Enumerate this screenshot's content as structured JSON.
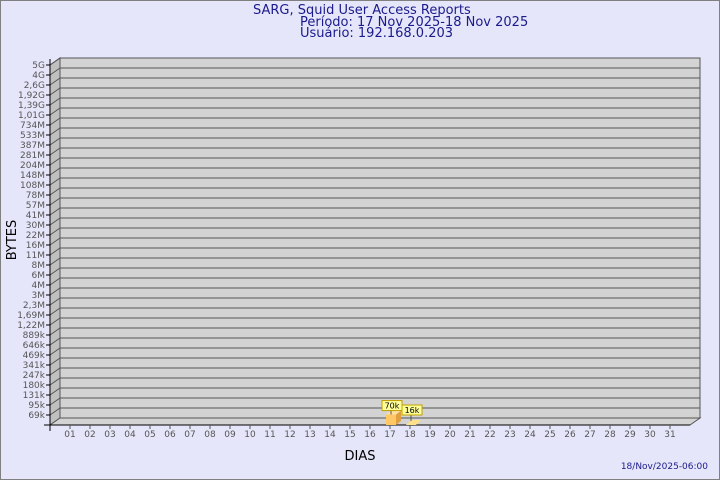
{
  "header": {
    "title": "SARG, Squid User Access Reports",
    "period": "Período: 17 Nov 2025-18 Nov 2025",
    "user": "Usuário: 192.168.0.203"
  },
  "timestamp": "18/Nov/2025-06:00",
  "colors": {
    "background": "#e6e6fa",
    "plot": "#d3d3d3",
    "bar": "#ffc864",
    "label_bg": "#ffff99",
    "title": "#1a1a8c"
  },
  "chart_data": {
    "type": "bar",
    "style": "3d",
    "xlabel": "DIAS",
    "ylabel": "BYTES",
    "y_scale": "log",
    "grid": true,
    "y_ticks": [
      "69k",
      "95k",
      "131k",
      "180k",
      "247k",
      "341k",
      "469k",
      "646k",
      "889k",
      "1,22M",
      "1,69M",
      "2,3M",
      "3M",
      "4M",
      "6M",
      "8M",
      "11M",
      "16M",
      "22M",
      "30M",
      "41M",
      "57M",
      "78M",
      "108M",
      "148M",
      "204M",
      "281M",
      "387M",
      "533M",
      "734M",
      "1,01G",
      "1,39G",
      "1,92G",
      "2,6G",
      "4G",
      "5G"
    ],
    "categories": [
      "01",
      "02",
      "03",
      "04",
      "05",
      "06",
      "07",
      "08",
      "09",
      "10",
      "11",
      "12",
      "13",
      "14",
      "15",
      "16",
      "17",
      "18",
      "19",
      "20",
      "21",
      "22",
      "23",
      "24",
      "25",
      "26",
      "27",
      "28",
      "29",
      "30",
      "31"
    ],
    "bars": [
      {
        "day": "17",
        "value": 70000,
        "label": "70k"
      },
      {
        "day": "18",
        "value": 16000,
        "label": "16k"
      }
    ]
  }
}
